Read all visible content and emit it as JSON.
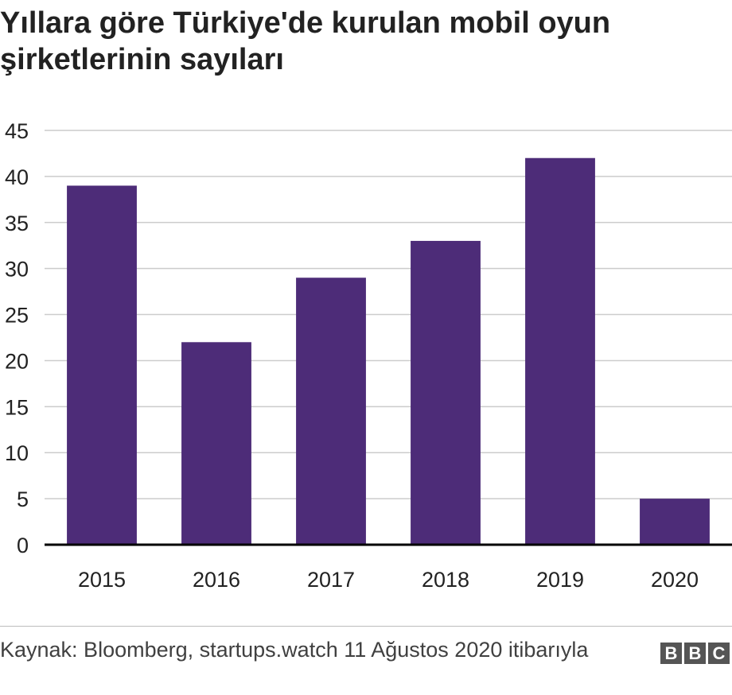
{
  "title": "Yıllara göre Türkiye'de kurulan mobil oyun şirketlerinin sayıları",
  "source": "Kaynak: Bloomberg, startups.watch 11 Ağustos 2020 itibarıyla",
  "logo": [
    "B",
    "B",
    "C"
  ],
  "colors": {
    "bar": "#4d2c78",
    "grid": "#cccccc",
    "axis": "#000000",
    "text": "#222222"
  },
  "chart_data": {
    "type": "bar",
    "title": "Yıllara göre Türkiye'de kurulan mobil oyun şirketlerinin sayıları",
    "xlabel": "",
    "ylabel": "",
    "categories": [
      "2015",
      "2016",
      "2017",
      "2018",
      "2019",
      "2020"
    ],
    "values": [
      39,
      22,
      29,
      33,
      42,
      5
    ],
    "ylim": [
      0,
      45
    ],
    "yticks": [
      0,
      5,
      10,
      15,
      20,
      25,
      30,
      35,
      40,
      45
    ],
    "grid": true,
    "legend": "none"
  }
}
